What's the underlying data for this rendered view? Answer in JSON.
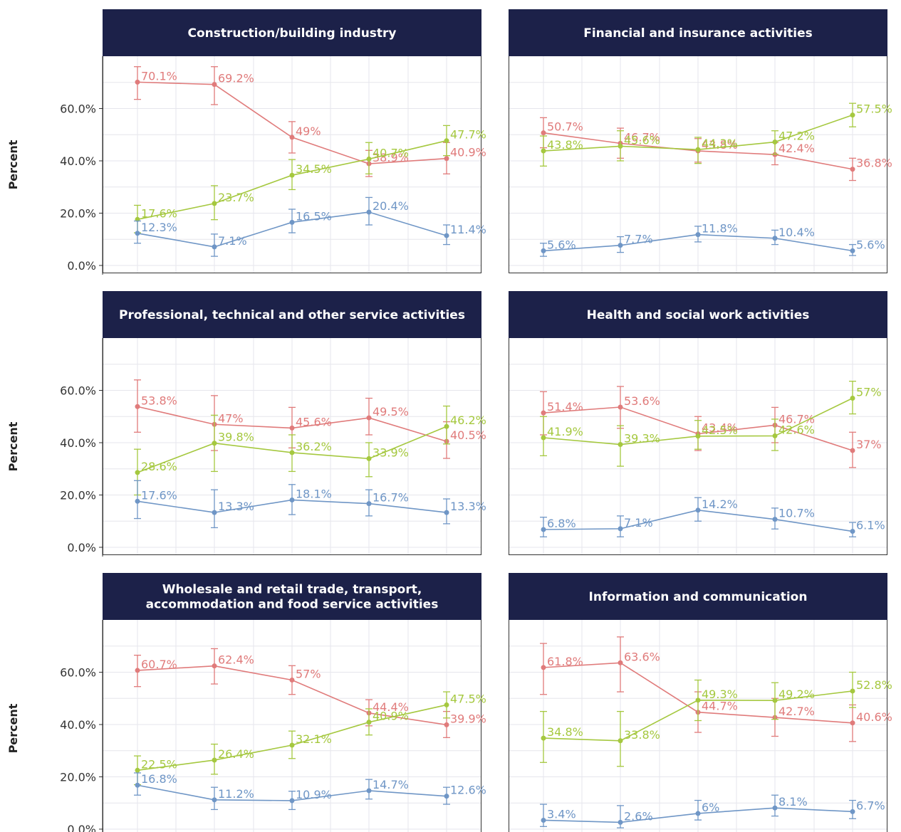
{
  "figure": {
    "y_axis_label": "Percent",
    "colors": {
      "header_bg": "#1c2149",
      "header_text": "#ffffff",
      "grid": "#e6e6ec",
      "axis": "#333333",
      "tick_text": "#333333"
    }
  },
  "chart_data": [
    {
      "type": "line",
      "title": "Construction/building industry",
      "ylabel": "Percent",
      "y_ticks": [
        "0.0%",
        "20.0%",
        "40.0%",
        "60.0%"
      ],
      "ylim": [
        -3,
        80
      ],
      "grid": true,
      "x": [
        1,
        2,
        3,
        4,
        5
      ],
      "series": [
        {
          "color": "#e07b7b",
          "values": [
            70.1,
            69.2,
            49,
            38.9,
            40.9
          ],
          "labels": [
            "70.1%",
            "69.2%",
            "49%",
            "38.9%",
            "40.9%"
          ],
          "err_low": [
            63.5,
            61.5,
            43,
            34,
            35
          ],
          "err_high": [
            76,
            76,
            55,
            44,
            47
          ]
        },
        {
          "color": "#a5c83f",
          "values": [
            17.6,
            23.7,
            34.5,
            40.7,
            47.7
          ],
          "labels": [
            "17.6%",
            "23.7%",
            "34.5%",
            "40.7%",
            "47.7%"
          ],
          "err_low": [
            12.5,
            17.5,
            29,
            35,
            42
          ],
          "err_high": [
            23,
            30.5,
            40.5,
            47,
            53.5
          ]
        },
        {
          "color": "#6f96c6",
          "values": [
            12.3,
            7.1,
            16.5,
            20.4,
            11.4
          ],
          "labels": [
            "12.3%",
            "7.1%",
            "16.5%",
            "20.4%",
            "11.4%"
          ],
          "err_low": [
            8.5,
            3.5,
            12.5,
            15.5,
            8
          ],
          "err_high": [
            17,
            12,
            21.5,
            26,
            15.5
          ]
        }
      ]
    },
    {
      "type": "line",
      "title": "Financial and insurance activities",
      "ylim": [
        -3,
        80
      ],
      "grid": true,
      "x": [
        1,
        2,
        3,
        4,
        5
      ],
      "series": [
        {
          "color": "#e07b7b",
          "values": [
            50.7,
            46.7,
            43.8,
            42.4,
            36.8
          ],
          "labels": [
            "50.7%",
            "46.7%",
            "43.8%",
            "42.4%",
            "36.8%"
          ],
          "err_low": [
            45,
            41,
            39.5,
            38.5,
            32.5
          ],
          "err_high": [
            56.5,
            52.5,
            48.5,
            47,
            41
          ]
        },
        {
          "color": "#a5c83f",
          "values": [
            43.8,
            45.6,
            44.3,
            47.2,
            57.5
          ],
          "labels": [
            "43.8%",
            "45.6%",
            "44.3%",
            "47.2%",
            "57.5%"
          ],
          "err_low": [
            38,
            40,
            39,
            42.5,
            53
          ],
          "err_high": [
            49.5,
            51.5,
            49,
            51.5,
            62
          ]
        },
        {
          "color": "#6f96c6",
          "values": [
            5.6,
            7.7,
            11.8,
            10.4,
            5.6
          ],
          "labels": [
            "5.6%",
            "7.7%",
            "11.8%",
            "10.4%",
            "5.6%"
          ],
          "err_low": [
            3.5,
            5,
            9,
            8,
            3.8
          ],
          "err_high": [
            8.5,
            11,
            15,
            13.5,
            8
          ]
        }
      ]
    },
    {
      "type": "line",
      "title": "Professional, technical and other service activities",
      "ylabel": "Percent",
      "y_ticks": [
        "0.0%",
        "20.0%",
        "40.0%",
        "60.0%"
      ],
      "ylim": [
        -3,
        80
      ],
      "grid": true,
      "x": [
        1,
        2,
        3,
        4,
        5
      ],
      "series": [
        {
          "color": "#e07b7b",
          "values": [
            53.8,
            47,
            45.6,
            49.5,
            40.5
          ],
          "labels": [
            "53.8%",
            "47%",
            "45.6%",
            "49.5%",
            "40.5%"
          ],
          "err_low": [
            44,
            37,
            38,
            43,
            34
          ],
          "err_high": [
            64,
            58,
            53.5,
            57,
            48
          ]
        },
        {
          "color": "#a5c83f",
          "values": [
            28.6,
            39.8,
            36.2,
            33.9,
            46.2
          ],
          "labels": [
            "28.6%",
            "39.8%",
            "36.2%",
            "33.9%",
            "46.2%"
          ],
          "err_low": [
            20,
            29,
            29,
            27,
            39.5
          ],
          "err_high": [
            37.5,
            50.5,
            43,
            40,
            54
          ]
        },
        {
          "color": "#6f96c6",
          "values": [
            17.6,
            13.3,
            18.1,
            16.7,
            13.3
          ],
          "labels": [
            "17.6%",
            "13.3%",
            "18.1%",
            "16.7%",
            "13.3%"
          ],
          "err_low": [
            11,
            7.5,
            12.5,
            12,
            9
          ],
          "err_high": [
            25.5,
            22,
            24,
            22,
            18.5
          ]
        }
      ]
    },
    {
      "type": "line",
      "title": "Health and social work activities",
      "ylim": [
        -3,
        80
      ],
      "grid": true,
      "x": [
        1,
        2,
        3,
        4,
        5
      ],
      "series": [
        {
          "color": "#e07b7b",
          "values": [
            51.4,
            53.6,
            43.4,
            46.7,
            37
          ],
          "labels": [
            "51.4%",
            "53.6%",
            "43.4%",
            "46.7%",
            "37%"
          ],
          "err_low": [
            43,
            45.5,
            37,
            40,
            30.5
          ],
          "err_high": [
            59.5,
            61.5,
            50,
            53.5,
            44
          ]
        },
        {
          "color": "#a5c83f",
          "values": [
            41.9,
            39.3,
            42.5,
            42.6,
            57
          ],
          "labels": [
            "41.9%",
            "39.3%",
            "42.5%",
            "42.6%",
            "57%"
          ],
          "err_low": [
            35,
            31,
            37.5,
            37,
            51
          ],
          "err_high": [
            50,
            46.5,
            48.5,
            49,
            63.5
          ]
        },
        {
          "color": "#6f96c6",
          "values": [
            6.8,
            7.1,
            14.2,
            10.7,
            6.1
          ],
          "labels": [
            "6.8%",
            "7.1%",
            "14.2%",
            "10.7%",
            "6.1%"
          ],
          "err_low": [
            4,
            4,
            10,
            7,
            4
          ],
          "err_high": [
            11.5,
            12,
            19,
            15,
            9.5
          ]
        }
      ]
    },
    {
      "type": "line",
      "title": "Wholesale and retail trade, transport, accommodation and food service activities",
      "title_lines": [
        "Wholesale and retail trade, transport,",
        "accommodation and food service activities"
      ],
      "ylabel": "Percent",
      "y_ticks": [
        "0.0%",
        "20.0%",
        "40.0%",
        "60.0%"
      ],
      "ylim": [
        -3,
        80
      ],
      "grid": true,
      "x": [
        1,
        2,
        3,
        4,
        5
      ],
      "series": [
        {
          "color": "#e07b7b",
          "values": [
            60.7,
            62.4,
            57,
            44.4,
            39.9
          ],
          "labels": [
            "60.7%",
            "62.4%",
            "57%",
            "44.4%",
            "39.9%"
          ],
          "err_low": [
            54.5,
            55.5,
            51.5,
            39.5,
            35
          ],
          "err_high": [
            66.5,
            69,
            62.5,
            49.5,
            45
          ]
        },
        {
          "color": "#a5c83f",
          "values": [
            22.5,
            26.4,
            32.1,
            40.9,
            47.5
          ],
          "labels": [
            "22.5%",
            "26.4%",
            "32.1%",
            "40.9%",
            "47.5%"
          ],
          "err_low": [
            17,
            21,
            27,
            36,
            42.5
          ],
          "err_high": [
            28,
            32.5,
            37.5,
            46,
            52.5
          ]
        },
        {
          "color": "#6f96c6",
          "values": [
            16.8,
            11.2,
            10.9,
            14.7,
            12.6
          ],
          "labels": [
            "16.8%",
            "11.2%",
            "10.9%",
            "14.7%",
            "12.6%"
          ],
          "err_low": [
            13,
            7.5,
            7.5,
            11.5,
            9.5
          ],
          "err_high": [
            21.5,
            16,
            14.5,
            19,
            16
          ]
        }
      ]
    },
    {
      "type": "line",
      "title": "Information and communication",
      "ylim": [
        -3,
        80
      ],
      "grid": true,
      "x": [
        1,
        2,
        3,
        4,
        5
      ],
      "series": [
        {
          "color": "#e07b7b",
          "values": [
            61.8,
            63.6,
            44.7,
            42.7,
            40.6
          ],
          "labels": [
            "61.8%",
            "63.6%",
            "44.7%",
            "42.7%",
            "40.6%"
          ],
          "err_low": [
            51.5,
            52.5,
            37,
            35.5,
            33.5
          ],
          "err_high": [
            71,
            73.5,
            52.5,
            50,
            47.5
          ]
        },
        {
          "color": "#a5c83f",
          "values": [
            34.8,
            33.8,
            49.3,
            49.2,
            52.8
          ],
          "labels": [
            "34.8%",
            "33.8%",
            "49.3%",
            "49.2%",
            "52.8%"
          ],
          "err_low": [
            25.5,
            24,
            41.5,
            42,
            46.5
          ],
          "err_high": [
            45,
            45,
            57,
            56,
            60
          ]
        },
        {
          "color": "#6f96c6",
          "values": [
            3.4,
            2.6,
            6,
            8.1,
            6.7
          ],
          "labels": [
            "3.4%",
            "2.6%",
            "6%",
            "8.1%",
            "6.7%"
          ],
          "err_low": [
            1,
            0.5,
            3.5,
            5,
            4
          ],
          "err_high": [
            9.5,
            9,
            11,
            13,
            11
          ]
        }
      ]
    }
  ]
}
